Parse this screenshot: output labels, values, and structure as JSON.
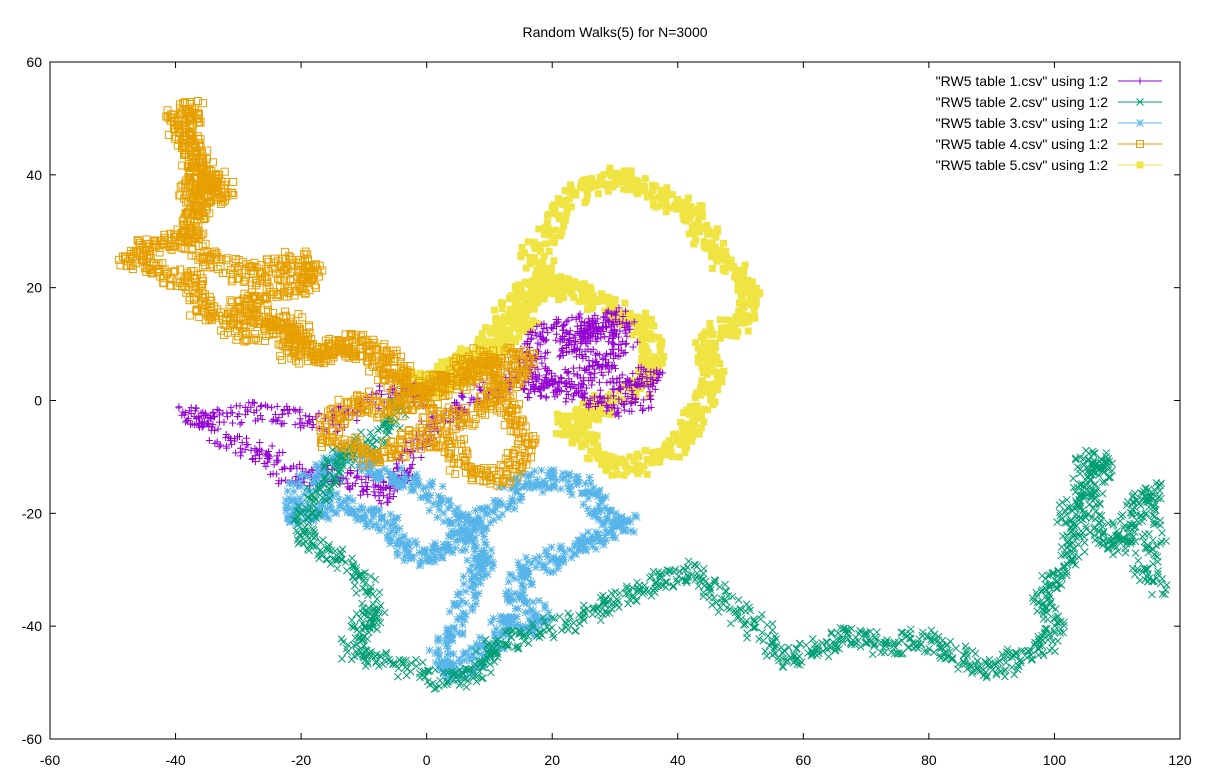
{
  "chart_data": {
    "type": "scatter",
    "title": "Random Walks(5) for N=3000",
    "xlabel": "",
    "ylabel": "",
    "xlim": [
      -60,
      120
    ],
    "ylim": [
      -60,
      60
    ],
    "xticks": [
      -60,
      -40,
      -20,
      0,
      20,
      40,
      60,
      80,
      100,
      120
    ],
    "yticks": [
      -60,
      -40,
      -20,
      0,
      20,
      40,
      60
    ],
    "grid": false,
    "legend_position": "top-right",
    "series": [
      {
        "name": "\"RW5 table 1.csv\" using 1:2",
        "marker": "plus",
        "color": "#9400d3",
        "waypoints": [
          [
            0,
            0
          ],
          [
            -4,
            2
          ],
          [
            -10,
            -1
          ],
          [
            -16,
            -4
          ],
          [
            -22,
            -3
          ],
          [
            -27,
            -2
          ],
          [
            -33,
            -3
          ],
          [
            -38,
            -2
          ],
          [
            -35,
            -5
          ],
          [
            -30,
            -8
          ],
          [
            -25,
            -10
          ],
          [
            -22,
            -13
          ],
          [
            -18,
            -14
          ],
          [
            -14,
            -13
          ],
          [
            -10,
            -15
          ],
          [
            -6,
            -17
          ],
          [
            -4,
            -13
          ],
          [
            -2,
            -8
          ],
          [
            2,
            -4
          ],
          [
            6,
            -1
          ],
          [
            10,
            2
          ],
          [
            15,
            4
          ],
          [
            18,
            1
          ],
          [
            22,
            3
          ],
          [
            26,
            5
          ],
          [
            30,
            8
          ],
          [
            32,
            12
          ],
          [
            30,
            15
          ],
          [
            26,
            13
          ],
          [
            24,
            9
          ],
          [
            28,
            5
          ],
          [
            32,
            3
          ],
          [
            36,
            5
          ],
          [
            34,
            0
          ],
          [
            30,
            -1
          ],
          [
            26,
            1
          ],
          [
            22,
            2
          ],
          [
            18,
            5
          ],
          [
            16,
            8
          ],
          [
            18,
            12
          ],
          [
            22,
            13
          ],
          [
            26,
            14
          ],
          [
            28,
            12
          ],
          [
            24,
            10
          ],
          [
            20,
            9
          ]
        ]
      },
      {
        "name": "\"RW5 table 2.csv\" using 1:2",
        "marker": "x",
        "color": "#009e73",
        "waypoints": [
          [
            -4,
            0
          ],
          [
            -6,
            -4
          ],
          [
            -10,
            -8
          ],
          [
            -14,
            -10
          ],
          [
            -16,
            -14
          ],
          [
            -18,
            -18
          ],
          [
            -20,
            -22
          ],
          [
            -18,
            -26
          ],
          [
            -14,
            -28
          ],
          [
            -10,
            -32
          ],
          [
            -8,
            -38
          ],
          [
            -10,
            -40
          ],
          [
            -12,
            -44
          ],
          [
            -8,
            -46
          ],
          [
            -2,
            -48
          ],
          [
            4,
            -50
          ],
          [
            8,
            -48
          ],
          [
            10,
            -44
          ],
          [
            14,
            -42
          ],
          [
            20,
            -40
          ],
          [
            26,
            -38
          ],
          [
            30,
            -36
          ],
          [
            34,
            -34
          ],
          [
            38,
            -32
          ],
          [
            42,
            -30
          ],
          [
            46,
            -34
          ],
          [
            50,
            -38
          ],
          [
            54,
            -42
          ],
          [
            58,
            -46
          ],
          [
            62,
            -44
          ],
          [
            66,
            -42
          ],
          [
            70,
            -42
          ],
          [
            74,
            -44
          ],
          [
            78,
            -42
          ],
          [
            82,
            -44
          ],
          [
            86,
            -46
          ],
          [
            90,
            -48
          ],
          [
            94,
            -46
          ],
          [
            98,
            -44
          ],
          [
            100,
            -40
          ],
          [
            98,
            -36
          ],
          [
            100,
            -32
          ],
          [
            102,
            -28
          ],
          [
            104,
            -24
          ],
          [
            102,
            -20
          ],
          [
            106,
            -16
          ],
          [
            108,
            -12
          ],
          [
            106,
            -10
          ],
          [
            104,
            -14
          ],
          [
            106,
            -20
          ],
          [
            108,
            -24
          ],
          [
            110,
            -26
          ],
          [
            112,
            -22
          ],
          [
            114,
            -18
          ],
          [
            116,
            -16
          ],
          [
            116,
            -24
          ],
          [
            114,
            -30
          ],
          [
            117,
            -34
          ]
        ]
      },
      {
        "name": "\"RW5 table 3.csv\" using 1:2",
        "marker": "star",
        "color": "#56b4e9",
        "waypoints": [
          [
            -12,
            -8
          ],
          [
            -16,
            -12
          ],
          [
            -20,
            -16
          ],
          [
            -22,
            -20
          ],
          [
            -18,
            -20
          ],
          [
            -14,
            -18
          ],
          [
            -10,
            -20
          ],
          [
            -6,
            -22
          ],
          [
            -4,
            -26
          ],
          [
            0,
            -28
          ],
          [
            4,
            -26
          ],
          [
            6,
            -22
          ],
          [
            10,
            -20
          ],
          [
            14,
            -16
          ],
          [
            18,
            -14
          ],
          [
            22,
            -14
          ],
          [
            26,
            -16
          ],
          [
            28,
            -20
          ],
          [
            32,
            -22
          ],
          [
            28,
            -24
          ],
          [
            24,
            -26
          ],
          [
            20,
            -28
          ],
          [
            16,
            -30
          ],
          [
            14,
            -34
          ],
          [
            18,
            -38
          ],
          [
            16,
            -40
          ],
          [
            12,
            -40
          ],
          [
            10,
            -44
          ],
          [
            8,
            -46
          ],
          [
            4,
            -48
          ],
          [
            2,
            -46
          ],
          [
            4,
            -42
          ],
          [
            6,
            -36
          ],
          [
            8,
            -30
          ],
          [
            10,
            -28
          ],
          [
            8,
            -24
          ],
          [
            4,
            -20
          ],
          [
            0,
            -16
          ],
          [
            -4,
            -14
          ],
          [
            -8,
            -12
          ],
          [
            -10,
            -10
          ]
        ]
      },
      {
        "name": "\"RW5 table 4.csv\" using 1:2",
        "marker": "open-square",
        "color": "#e69f00",
        "waypoints": [
          [
            0,
            0
          ],
          [
            -4,
            2
          ],
          [
            -8,
            6
          ],
          [
            -12,
            10
          ],
          [
            -16,
            8
          ],
          [
            -20,
            10
          ],
          [
            -24,
            13
          ],
          [
            -28,
            12
          ],
          [
            -32,
            14
          ],
          [
            -36,
            16
          ],
          [
            -36,
            20
          ],
          [
            -40,
            22
          ],
          [
            -44,
            24
          ],
          [
            -48,
            25
          ],
          [
            -44,
            27
          ],
          [
            -40,
            28
          ],
          [
            -38,
            30
          ],
          [
            -36,
            34
          ],
          [
            -38,
            38
          ],
          [
            -36,
            40
          ],
          [
            -32,
            38
          ],
          [
            -34,
            36
          ],
          [
            -36,
            40
          ],
          [
            -38,
            44
          ],
          [
            -38,
            48
          ],
          [
            -37,
            52
          ],
          [
            -40,
            50
          ],
          [
            -38,
            46
          ],
          [
            -36,
            42
          ],
          [
            -34,
            38
          ],
          [
            -36,
            34
          ],
          [
            -38,
            30
          ],
          [
            -36,
            26
          ],
          [
            -32,
            24
          ],
          [
            -28,
            22
          ],
          [
            -24,
            24
          ],
          [
            -20,
            25
          ],
          [
            -18,
            22
          ],
          [
            -20,
            20
          ],
          [
            -24,
            20
          ],
          [
            -28,
            18
          ],
          [
            -30,
            16
          ],
          [
            -26,
            14
          ],
          [
            -22,
            14
          ],
          [
            -20,
            12
          ],
          [
            -22,
            9
          ],
          [
            -18,
            8
          ],
          [
            -14,
            10
          ],
          [
            -10,
            10
          ],
          [
            -6,
            8
          ],
          [
            -4,
            4
          ],
          [
            0,
            2
          ],
          [
            4,
            4
          ],
          [
            8,
            8
          ],
          [
            10,
            5
          ],
          [
            12,
            0
          ],
          [
            14,
            -4
          ],
          [
            16,
            -8
          ],
          [
            14,
            -12
          ],
          [
            10,
            -14
          ],
          [
            6,
            -12
          ],
          [
            4,
            -8
          ],
          [
            0,
            -6
          ],
          [
            -4,
            -8
          ],
          [
            -8,
            -10
          ],
          [
            -12,
            -8
          ],
          [
            -16,
            -6
          ],
          [
            -14,
            -2
          ],
          [
            -10,
            0
          ],
          [
            -6,
            -2
          ],
          [
            -2,
            0
          ],
          [
            2,
            2
          ],
          [
            6,
            4
          ],
          [
            10,
            6
          ],
          [
            14,
            8
          ],
          [
            16,
            6
          ],
          [
            12,
            2
          ],
          [
            8,
            -2
          ],
          [
            4,
            -4
          ],
          [
            0,
            -2
          ]
        ]
      },
      {
        "name": "\"RW5 table 5.csv\" using 1:2",
        "marker": "filled-square",
        "color": "#f0e442",
        "waypoints": [
          [
            -4,
            4
          ],
          [
            0,
            3
          ],
          [
            4,
            6
          ],
          [
            8,
            8
          ],
          [
            12,
            10
          ],
          [
            14,
            13
          ],
          [
            16,
            15
          ],
          [
            18,
            20
          ],
          [
            20,
            22
          ],
          [
            16,
            26
          ],
          [
            20,
            30
          ],
          [
            22,
            36
          ],
          [
            26,
            38
          ],
          [
            30,
            40
          ],
          [
            34,
            38
          ],
          [
            38,
            36
          ],
          [
            42,
            34
          ],
          [
            44,
            30
          ],
          [
            46,
            26
          ],
          [
            50,
            22
          ],
          [
            52,
            18
          ],
          [
            50,
            14
          ],
          [
            46,
            12
          ],
          [
            44,
            8
          ],
          [
            46,
            4
          ],
          [
            44,
            0
          ],
          [
            42,
            -4
          ],
          [
            40,
            -8
          ],
          [
            36,
            -10
          ],
          [
            32,
            -12
          ],
          [
            28,
            -10
          ],
          [
            24,
            -6
          ],
          [
            22,
            -4
          ],
          [
            26,
            -2
          ],
          [
            30,
            0
          ],
          [
            34,
            2
          ],
          [
            36,
            6
          ],
          [
            36,
            10
          ],
          [
            34,
            14
          ],
          [
            30,
            16
          ],
          [
            26,
            18
          ],
          [
            22,
            20
          ],
          [
            18,
            20
          ],
          [
            14,
            18
          ],
          [
            12,
            14
          ],
          [
            10,
            10
          ],
          [
            8,
            6
          ],
          [
            4,
            4
          ],
          [
            0,
            2
          ]
        ]
      }
    ]
  }
}
